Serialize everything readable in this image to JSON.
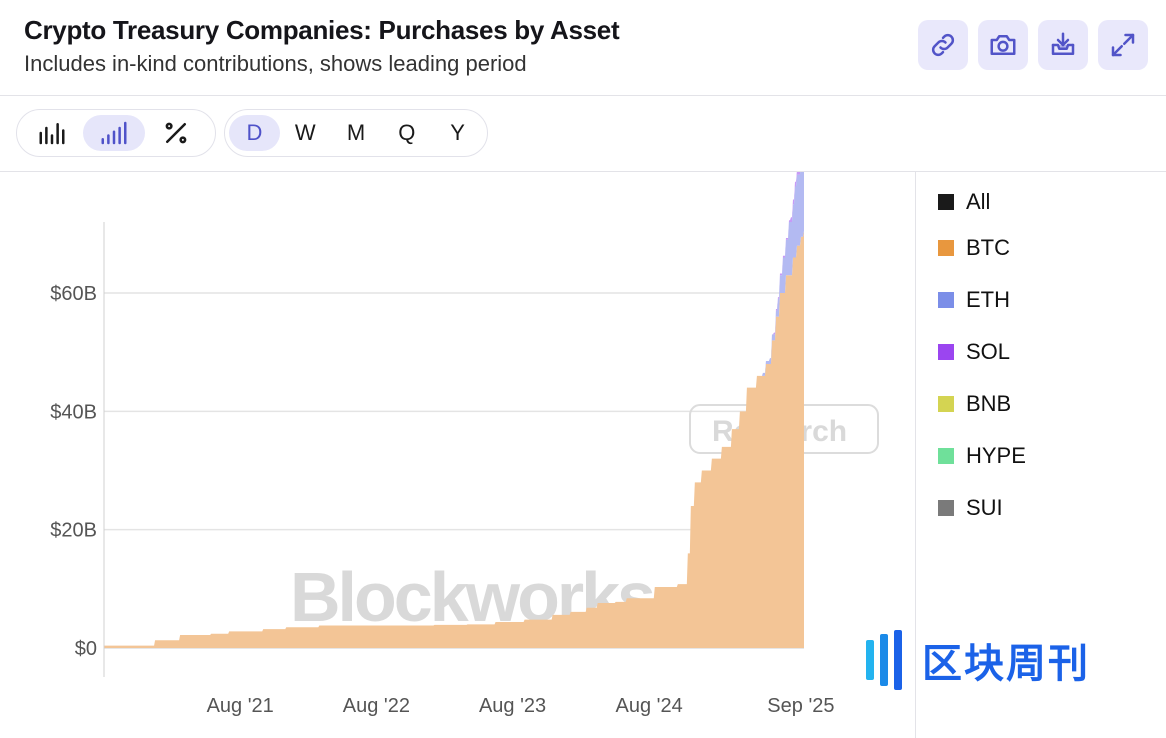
{
  "header": {
    "title": "Crypto Treasury Companies: Purchases by Asset",
    "subtitle": "Includes in-kind contributions, shows leading period",
    "actions": [
      {
        "name": "link-button",
        "icon": "link-icon"
      },
      {
        "name": "screenshot-button",
        "icon": "camera-icon"
      },
      {
        "name": "download-button",
        "icon": "download-tray-icon"
      },
      {
        "name": "fullscreen-button",
        "icon": "expand-icon"
      }
    ]
  },
  "toolbar": {
    "views": [
      {
        "name": "bar-view",
        "icon": "bar-chart-icon",
        "active": false
      },
      {
        "name": "cumulative-view",
        "icon": "ascending-bars-icon",
        "active": true
      },
      {
        "name": "percent-view",
        "icon": "percent-icon",
        "active": false
      }
    ],
    "periods": [
      {
        "label": "D",
        "active": true
      },
      {
        "label": "W",
        "active": false
      },
      {
        "label": "M",
        "active": false
      },
      {
        "label": "Q",
        "active": false
      },
      {
        "label": "Y",
        "active": false
      }
    ]
  },
  "legend": [
    {
      "label": "All",
      "color": "#1a1a1a"
    },
    {
      "label": "BTC",
      "color": "#e8973e"
    },
    {
      "label": "ETH",
      "color": "#7b8ee8"
    },
    {
      "label": "SOL",
      "color": "#9b45f0"
    },
    {
      "label": "BNB",
      "color": "#d4d452"
    },
    {
      "label": "HYPE",
      "color": "#6fe09a"
    },
    {
      "label": "SUI",
      "color": "#7a7a7a"
    }
  ],
  "watermark": {
    "brand": "Blockworks",
    "tag": "Research",
    "cn_brand": "区块周刊"
  },
  "chart_data": {
    "type": "area",
    "subtype": "stacked-cumulative-step",
    "y_tick_labels": [
      "$0",
      "$20B",
      "$40B",
      "$60B"
    ],
    "x_tick_labels": [
      "Aug '21",
      "Aug '22",
      "Aug '23",
      "Aug '24",
      "Sep '25"
    ],
    "ylim": [
      0,
      72
    ],
    "y_unit": "billions USD",
    "grid": true,
    "legend_position": "right",
    "series": [
      {
        "name": "BTC",
        "color": "#f3c596",
        "points": [
          [
            "2020-08-01",
            0.4
          ],
          [
            "2020-10-15",
            0.4
          ],
          [
            "2020-12-15",
            1.3
          ],
          [
            "2021-02-20",
            2.2
          ],
          [
            "2021-05-15",
            2.4
          ],
          [
            "2021-07-01",
            2.8
          ],
          [
            "2021-10-01",
            3.2
          ],
          [
            "2021-12-01",
            3.5
          ],
          [
            "2022-03-01",
            3.8
          ],
          [
            "2022-06-01",
            3.8
          ],
          [
            "2022-10-01",
            3.8
          ],
          [
            "2023-01-01",
            3.9
          ],
          [
            "2023-04-01",
            4.0
          ],
          [
            "2023-06-15",
            4.4
          ],
          [
            "2023-09-01",
            4.8
          ],
          [
            "2023-11-15",
            5.6
          ],
          [
            "2024-01-01",
            6.1
          ],
          [
            "2024-02-15",
            6.8
          ],
          [
            "2024-03-15",
            7.6
          ],
          [
            "2024-05-01",
            7.8
          ],
          [
            "2024-06-01",
            8.4
          ],
          [
            "2024-08-15",
            10.3
          ],
          [
            "2024-10-15",
            10.8
          ],
          [
            "2024-11-10",
            16.0
          ],
          [
            "2024-11-20",
            24.0
          ],
          [
            "2024-12-01",
            28.0
          ],
          [
            "2024-12-20",
            30.0
          ],
          [
            "2025-01-15",
            32.0
          ],
          [
            "2025-02-10",
            34.0
          ],
          [
            "2025-03-10",
            37.0
          ],
          [
            "2025-04-01",
            40.0
          ],
          [
            "2025-04-20",
            44.0
          ],
          [
            "2025-05-15",
            46.0
          ],
          [
            "2025-06-10",
            48.0
          ],
          [
            "2025-06-25",
            52.0
          ],
          [
            "2025-07-05",
            56.0
          ],
          [
            "2025-07-15",
            60.0
          ],
          [
            "2025-08-01",
            63.0
          ],
          [
            "2025-08-20",
            66.0
          ],
          [
            "2025-09-01",
            68.0
          ],
          [
            "2025-09-10",
            69.5
          ],
          [
            "2025-09-20",
            70.5
          ]
        ]
      },
      {
        "name": "ETH",
        "color": "#b3baf2",
        "points": [
          [
            "2025-05-01",
            0
          ],
          [
            "2025-06-01",
            0.5
          ],
          [
            "2025-06-20",
            1.0
          ],
          [
            "2025-07-10",
            3.0
          ],
          [
            "2025-07-25",
            6.0
          ],
          [
            "2025-08-10",
            9.0
          ],
          [
            "2025-08-25",
            12.0
          ],
          [
            "2025-09-10",
            14.0
          ],
          [
            "2025-09-20",
            14.5
          ]
        ]
      },
      {
        "name": "SOL",
        "color": "#c79af7",
        "points": [
          [
            "2025-05-01",
            0
          ],
          [
            "2025-07-01",
            0.3
          ],
          [
            "2025-08-15",
            0.8
          ],
          [
            "2025-09-20",
            1.3
          ]
        ]
      }
    ]
  }
}
